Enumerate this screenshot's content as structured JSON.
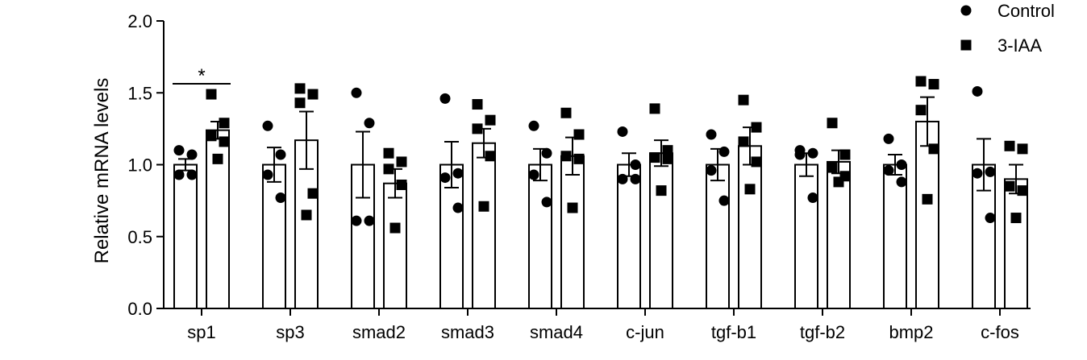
{
  "chart_data": {
    "type": "bar",
    "ylabel": "Relative mRNA levels",
    "ylim": [
      0,
      2.0
    ],
    "yticks": [
      "0.0",
      "0.5",
      "1.0",
      "1.5",
      "2.0"
    ],
    "ytick_values": [
      0,
      0.5,
      1.0,
      1.5,
      2.0
    ],
    "categories": [
      "sp1",
      "sp3",
      "smad2",
      "smad3",
      "smad4",
      "c-jun",
      "tgf-b1",
      "tgf-b2",
      "bmp2",
      "c-fos"
    ],
    "legend_position": "top-right",
    "series": [
      {
        "name": "Control",
        "marker": "circle",
        "means": [
          1.0,
          1.0,
          1.0,
          1.0,
          1.0,
          1.0,
          1.0,
          1.0,
          1.0,
          1.0
        ],
        "sem": [
          0.04,
          0.12,
          0.23,
          0.16,
          0.11,
          0.08,
          0.11,
          0.08,
          0.07,
          0.18
        ],
        "points": [
          [
            1.1,
            1.07,
            0.93,
            0.93
          ],
          [
            1.27,
            1.07,
            0.93,
            0.77
          ],
          [
            1.5,
            1.29,
            0.61,
            0.61
          ],
          [
            1.46,
            0.94,
            0.91,
            0.7
          ],
          [
            1.27,
            1.08,
            0.93,
            0.74
          ],
          [
            1.23,
            1.0,
            0.9,
            0.9
          ],
          [
            1.21,
            1.09,
            0.96,
            0.75
          ],
          [
            1.1,
            1.08,
            1.07,
            0.77
          ],
          [
            1.18,
            1.0,
            0.96,
            0.88
          ],
          [
            1.51,
            0.95,
            0.94,
            0.63
          ]
        ]
      },
      {
        "name": "3-IAA",
        "marker": "square",
        "means": [
          1.24,
          1.17,
          0.87,
          1.15,
          1.06,
          1.08,
          1.13,
          1.02,
          1.3,
          0.9
        ],
        "sem": [
          0.06,
          0.2,
          0.1,
          0.1,
          0.13,
          0.09,
          0.13,
          0.08,
          0.17,
          0.1
        ],
        "points": [
          [
            1.49,
            1.29,
            1.2,
            1.16,
            1.04
          ],
          [
            1.53,
            1.49,
            1.43,
            0.8,
            0.65
          ],
          [
            1.08,
            1.02,
            0.97,
            0.86,
            0.56
          ],
          [
            1.42,
            1.31,
            1.25,
            1.06,
            0.71
          ],
          [
            1.36,
            1.21,
            1.06,
            1.04,
            0.7
          ],
          [
            1.39,
            1.1,
            1.05,
            1.04,
            0.82
          ],
          [
            1.45,
            1.26,
            1.16,
            1.02,
            0.83
          ],
          [
            1.29,
            1.07,
            0.98,
            0.92,
            0.88
          ],
          [
            1.58,
            1.56,
            1.38,
            1.11,
            0.76
          ],
          [
            1.13,
            1.11,
            0.85,
            0.82,
            0.63
          ]
        ]
      }
    ],
    "annotations": [
      {
        "category": "sp1",
        "text": "*"
      }
    ]
  }
}
